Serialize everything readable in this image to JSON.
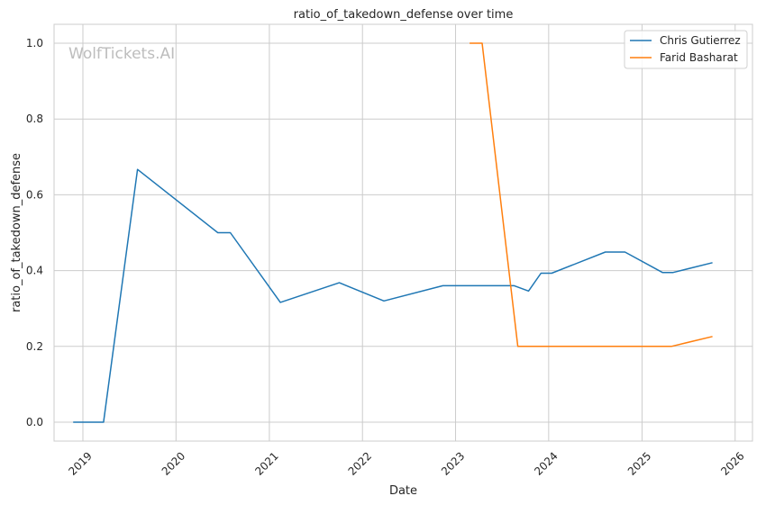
{
  "chart_data": {
    "type": "line",
    "title": "ratio_of_takedown_defense over time",
    "xlabel": "Date",
    "ylabel": "ratio_of_takedown_defense",
    "watermark": "WolfTickets.AI",
    "x_ticks": [
      "2019",
      "2020",
      "2021",
      "2022",
      "2023",
      "2024",
      "2025",
      "2026"
    ],
    "y_ticks": [
      "0.0",
      "0.2",
      "0.4",
      "0.6",
      "0.8",
      "1.0"
    ],
    "ylim": [
      -0.05,
      1.05
    ],
    "xlim": [
      "2018-09-10",
      "2026-03-10"
    ],
    "grid": true,
    "legend_position": "top-right",
    "series": [
      {
        "name": "Chris Gutierrez",
        "color": "#1f77b4",
        "points": [
          [
            "2018-11-24",
            0.0
          ],
          [
            "2019-03-23",
            0.0
          ],
          [
            "2019-08-03",
            0.667
          ],
          [
            "2020-06-13",
            0.5
          ],
          [
            "2020-08-01",
            0.5
          ],
          [
            "2021-02-13",
            0.316
          ],
          [
            "2021-10-02",
            0.368
          ],
          [
            "2022-03-26",
            0.32
          ],
          [
            "2022-11-12",
            0.36
          ],
          [
            "2023-06-03",
            0.36
          ],
          [
            "2023-08-19",
            0.36
          ],
          [
            "2023-10-14",
            0.346
          ],
          [
            "2023-12-02",
            0.393
          ],
          [
            "2024-01-13",
            0.393
          ],
          [
            "2024-08-10",
            0.449
          ],
          [
            "2024-10-26",
            0.449
          ],
          [
            "2025-03-22",
            0.395
          ],
          [
            "2025-05-03",
            0.395
          ],
          [
            "2025-10-04",
            0.421
          ]
        ]
      },
      {
        "name": "Farid Basharat",
        "color": "#ff7f0e",
        "points": [
          [
            "2023-02-25",
            1.0
          ],
          [
            "2023-04-15",
            1.0
          ],
          [
            "2023-09-02",
            0.2
          ],
          [
            "2025-04-26",
            0.2
          ],
          [
            "2025-10-04",
            0.226
          ]
        ]
      }
    ]
  }
}
